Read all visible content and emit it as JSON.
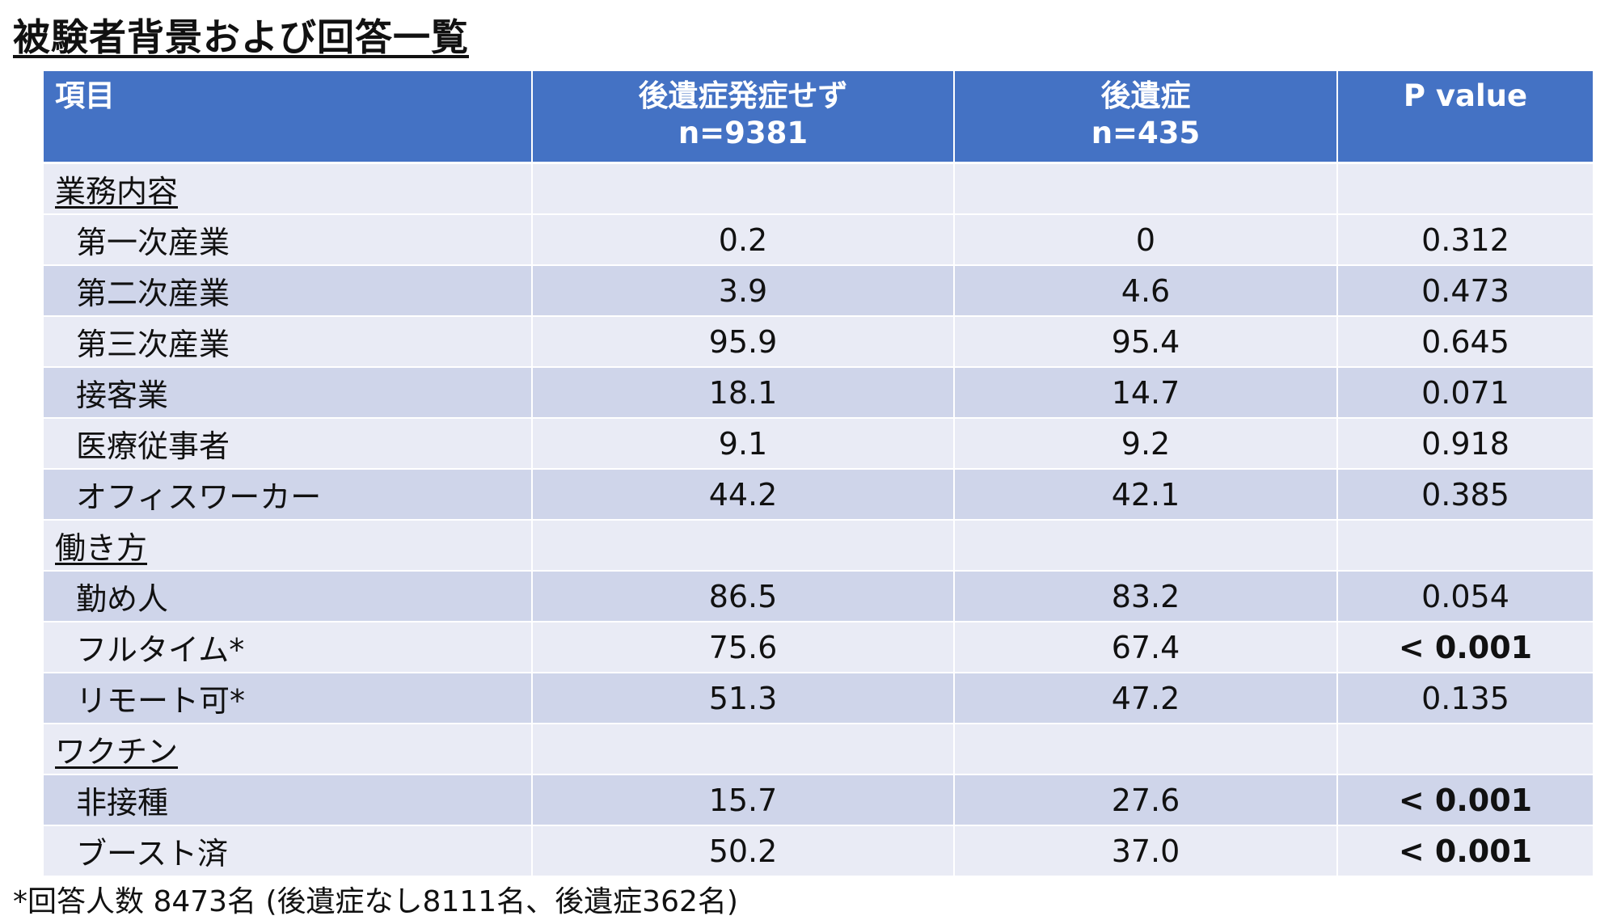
{
  "title": "被験者背景および回答一覧",
  "header": {
    "item": "項目",
    "col1_line1": "後遺症発症せず",
    "col1_line2": "n=9381",
    "col2_line1": "後遺症",
    "col2_line2": "n=435",
    "col3": "P value"
  },
  "rows": [
    {
      "label": "業務内容",
      "v1": "",
      "v2": "",
      "p": ""
    },
    {
      "label": "第一次産業",
      "v1": "0.2",
      "v2": "0",
      "p": "0.312"
    },
    {
      "label": "第二次産業",
      "v1": "3.9",
      "v2": "4.6",
      "p": "0.473"
    },
    {
      "label": "第三次産業",
      "v1": "95.9",
      "v2": "95.4",
      "p": "0.645"
    },
    {
      "label": "接客業",
      "v1": "18.1",
      "v2": "14.7",
      "p": "0.071"
    },
    {
      "label": "医療従事者",
      "v1": "9.1",
      "v2": "9.2",
      "p": "0.918"
    },
    {
      "label": "オフィスワーカー",
      "v1": "44.2",
      "v2": "42.1",
      "p": "0.385"
    },
    {
      "label": "働き方",
      "v1": "",
      "v2": "",
      "p": ""
    },
    {
      "label": "勤め人",
      "v1": "86.5",
      "v2": "83.2",
      "p": "0.054"
    },
    {
      "label": "フルタイム*",
      "v1": "75.6",
      "v2": "67.4",
      "p": "< 0.001"
    },
    {
      "label": "リモート可*",
      "v1": "51.3",
      "v2": "47.2",
      "p": "0.135"
    },
    {
      "label": "ワクチン",
      "v1": "",
      "v2": "",
      "p": ""
    },
    {
      "label": "非接種",
      "v1": "15.7",
      "v2": "27.6",
      "p": "< 0.001"
    },
    {
      "label": "ブースト済",
      "v1": "50.2",
      "v2": "37.0",
      "p": "< 0.001"
    }
  ],
  "footnote": "*回答人数 8473名 (後遺症なし8111名、後遺症362名)"
}
